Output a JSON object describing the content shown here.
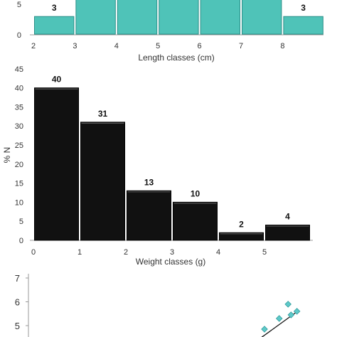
{
  "chart_data": [
    {
      "type": "bar",
      "xlabel": "Length classes (cm)",
      "ylabel": "",
      "x_ticks": [
        "2",
        "3",
        "4",
        "5",
        "6",
        "7",
        "8"
      ],
      "y_ticks_visible": [
        "0",
        "5"
      ],
      "bins": [
        [
          2,
          3
        ],
        [
          3,
          4
        ],
        [
          4,
          5
        ],
        [
          5,
          6
        ],
        [
          6,
          7
        ],
        [
          7,
          8
        ],
        [
          8,
          9
        ]
      ],
      "values": [
        3,
        null,
        null,
        null,
        null,
        null,
        3
      ],
      "data_labels": [
        "3",
        "",
        "",
        "",
        "",
        "",
        "3"
      ],
      "bar_color": "#4fc3b8",
      "note": "top of panel cropped; middle bars extend above view"
    },
    {
      "type": "bar",
      "xlabel": "Weight classes (g)",
      "ylabel": "% N",
      "ylim": [
        0,
        45
      ],
      "y_ticks": [
        "0",
        "5",
        "10",
        "15",
        "20",
        "25",
        "30",
        "35",
        "40",
        "45"
      ],
      "x_ticks": [
        "0",
        "1",
        "2",
        "3",
        "4",
        "5"
      ],
      "bins": [
        [
          0,
          1
        ],
        [
          1,
          2
        ],
        [
          2,
          3
        ],
        [
          3,
          4
        ],
        [
          4,
          5
        ],
        [
          5,
          6
        ]
      ],
      "values": [
        40,
        31,
        13,
        10,
        2,
        4
      ],
      "data_labels": [
        "40",
        "31",
        "13",
        "10",
        "2",
        "4"
      ],
      "bar_color": "#111111"
    },
    {
      "type": "scatter",
      "y_ticks": [
        "5",
        "6",
        "7"
      ],
      "points": [
        [
          0.8,
          4.85
        ],
        [
          0.85,
          5.3
        ],
        [
          0.88,
          5.9
        ],
        [
          0.89,
          5.45
        ],
        [
          0.91,
          5.6
        ]
      ],
      "point_color": "#5ec9c9",
      "note": "bottom of panel cropped; x in relative units"
    }
  ]
}
